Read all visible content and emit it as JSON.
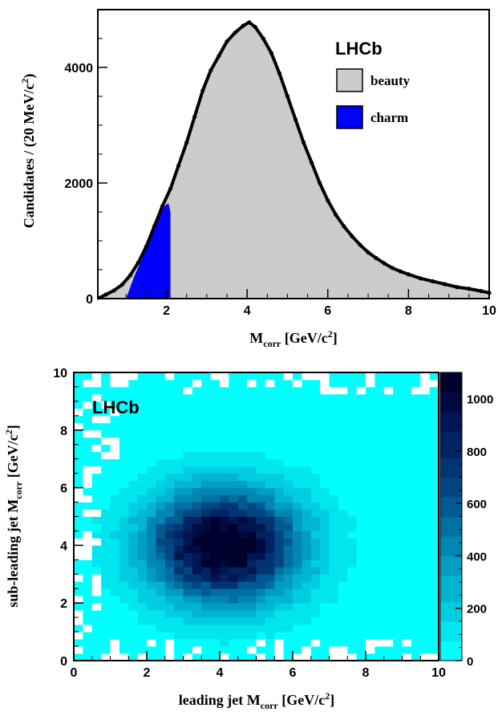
{
  "chart_data": [
    {
      "type": "area",
      "xlabel_main": "M",
      "xlabel_sub": "corr",
      "xlabel_unit": " [GeV/c",
      "xlabel_sup": "2",
      "xlabel_close": "]",
      "ylabel": "Candidates / (20 MeV/c",
      "ylabel_sup": "2",
      "ylabel_close": ")",
      "xlim": [
        0.3,
        10
      ],
      "ylim": [
        0,
        5000
      ],
      "x_ticks": [
        2,
        4,
        6,
        8,
        10
      ],
      "y_ticks": [
        0,
        2000,
        4000
      ],
      "annotation": "LHCb",
      "legend": {
        "placement": "top-right"
      },
      "series": [
        {
          "name": "beauty",
          "color": "#cccccc",
          "x": [
            0.3,
            0.5,
            0.7,
            0.9,
            1.1,
            1.3,
            1.5,
            1.7,
            1.9,
            2.1,
            2.3,
            2.5,
            2.7,
            2.9,
            3.1,
            3.3,
            3.5,
            3.7,
            3.9,
            4.05,
            4.2,
            4.4,
            4.6,
            4.8,
            5.0,
            5.2,
            5.4,
            5.6,
            5.8,
            6.0,
            6.2,
            6.4,
            6.6,
            6.8,
            7.0,
            7.2,
            7.4,
            7.6,
            7.8,
            8.0,
            8.3,
            8.6,
            8.9,
            9.2,
            9.5,
            9.8,
            10.0
          ],
          "values": [
            0,
            70,
            140,
            240,
            400,
            620,
            900,
            1250,
            1600,
            1900,
            2300,
            2700,
            3150,
            3600,
            3950,
            4200,
            4450,
            4600,
            4720,
            4780,
            4700,
            4500,
            4250,
            3900,
            3500,
            3100,
            2700,
            2350,
            2000,
            1700,
            1450,
            1250,
            1080,
            930,
            800,
            700,
            610,
            530,
            470,
            420,
            350,
            300,
            250,
            200,
            170,
            130,
            100
          ]
        },
        {
          "name": "charm",
          "color": "#0000ff",
          "x": [
            1.0,
            1.2,
            1.4,
            1.6,
            1.8,
            1.95,
            2.05,
            2.1
          ],
          "values": [
            0,
            380,
            700,
            1050,
            1400,
            1600,
            1650,
            1500
          ]
        }
      ]
    },
    {
      "type": "heatmap",
      "xlabel": "leading jet M",
      "xlabel_sub": "corr",
      "xlabel_unit": " [GeV/c",
      "xlabel_sup": "2",
      "xlabel_close": "]",
      "ylabel": "sub-leading jet M",
      "ylabel_sub": "corr",
      "ylabel_unit": " [GeV/c",
      "ylabel_sup": "2",
      "ylabel_close": "]",
      "xlim": [
        0,
        10
      ],
      "ylim": [
        0,
        10
      ],
      "x_ticks": [
        0,
        2,
        4,
        6,
        8,
        10
      ],
      "y_ticks": [
        0,
        2,
        4,
        6,
        8,
        10
      ],
      "annotation": "LHCb",
      "bins": 40,
      "peak": {
        "x": 4.1,
        "y": 4.0,
        "value": 1100
      },
      "zlim": [
        0,
        1100
      ],
      "z_ticks": [
        0,
        200,
        400,
        600,
        800,
        1000
      ],
      "colors": {
        "low": "#00f0f0",
        "high": "#000033"
      }
    }
  ]
}
